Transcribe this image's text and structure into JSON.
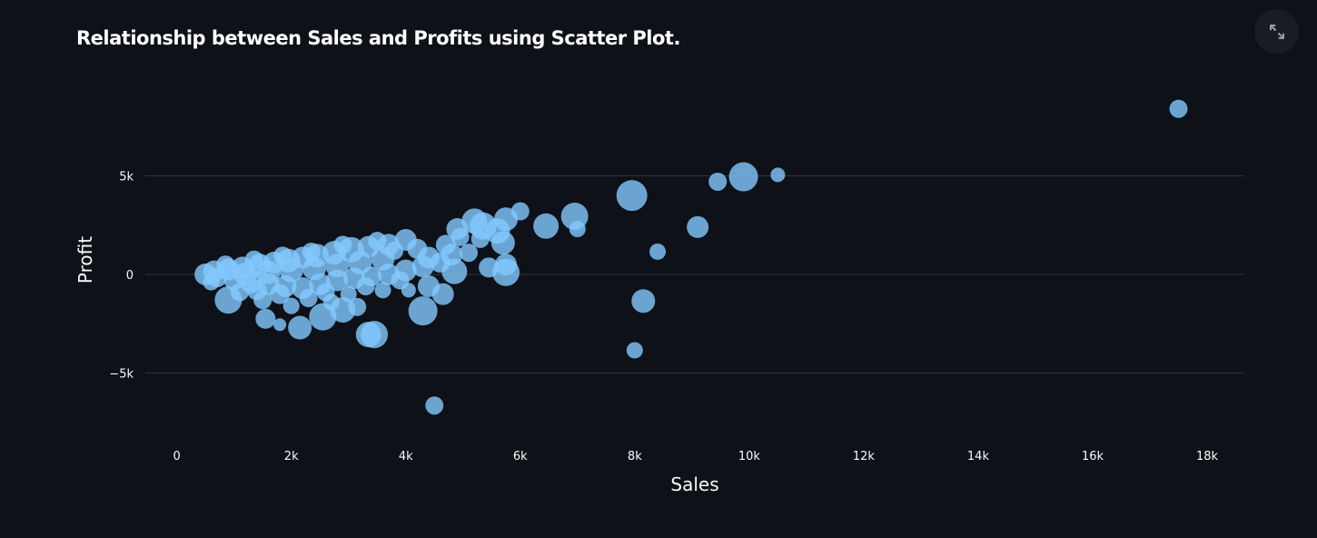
{
  "title": "Relationship between Sales and Profits using Scatter Plot.",
  "toolbar": {
    "fullscreen_icon": "expand-arrows-icon"
  },
  "colors": {
    "background": "#0e1117",
    "point": "#83c9ff",
    "grid": "#31333f",
    "text": "#fafafa"
  },
  "chart_data": {
    "type": "scatter",
    "title": "Relationship between Sales and Profits using Scatter Plot.",
    "xlabel": "Sales",
    "ylabel": "Profit",
    "xlim": [
      -550,
      18650
    ],
    "ylim": [
      -8300,
      10000
    ],
    "x_ticks": [
      0,
      2000,
      4000,
      6000,
      8000,
      10000,
      12000,
      14000,
      16000,
      18000
    ],
    "x_tick_labels": [
      "0",
      "2k",
      "4k",
      "6k",
      "8k",
      "10k",
      "12k",
      "14k",
      "16k",
      "18k"
    ],
    "y_ticks": [
      -5000,
      0,
      5000
    ],
    "y_tick_labels": [
      "−5k",
      "0",
      "5k"
    ],
    "grid": "horizontal",
    "legend": "none",
    "note_size": "marker size varies per point",
    "points": [
      {
        "x": 17500,
        "y": 8400,
        "size": 10
      },
      {
        "x": 9900,
        "y": 4950,
        "size": 16
      },
      {
        "x": 10500,
        "y": 5050,
        "size": 8
      },
      {
        "x": 9450,
        "y": 4700,
        "size": 10
      },
      {
        "x": 7950,
        "y": 4000,
        "size": 17
      },
      {
        "x": 6000,
        "y": 3200,
        "size": 10
      },
      {
        "x": 6950,
        "y": 2950,
        "size": 15
      },
      {
        "x": 6450,
        "y": 2450,
        "size": 14
      },
      {
        "x": 7000,
        "y": 2300,
        "size": 9
      },
      {
        "x": 9100,
        "y": 2400,
        "size": 12
      },
      {
        "x": 8400,
        "y": 1150,
        "size": 9
      },
      {
        "x": 8150,
        "y": -1350,
        "size": 13
      },
      {
        "x": 8000,
        "y": -3850,
        "size": 9
      },
      {
        "x": 4500,
        "y": -6650,
        "size": 10
      },
      {
        "x": 4300,
        "y": -1850,
        "size": 16
      },
      {
        "x": 3450,
        "y": -3050,
        "size": 15
      },
      {
        "x": 3350,
        "y": -3050,
        "size": 14
      },
      {
        "x": 2150,
        "y": -2700,
        "size": 13
      },
      {
        "x": 1800,
        "y": -2550,
        "size": 7
      },
      {
        "x": 2550,
        "y": -2150,
        "size": 15
      },
      {
        "x": 1550,
        "y": -2250,
        "size": 11
      },
      {
        "x": 900,
        "y": -1300,
        "size": 15
      },
      {
        "x": 2900,
        "y": -1800,
        "size": 14
      },
      {
        "x": 3150,
        "y": -1650,
        "size": 10
      },
      {
        "x": 4650,
        "y": -1000,
        "size": 12
      },
      {
        "x": 4050,
        "y": -800,
        "size": 8
      },
      {
        "x": 5750,
        "y": 100,
        "size": 15
      },
      {
        "x": 5750,
        "y": 500,
        "size": 12
      },
      {
        "x": 5450,
        "y": 350,
        "size": 11
      },
      {
        "x": 5700,
        "y": 1600,
        "size": 13
      },
      {
        "x": 5750,
        "y": 2800,
        "size": 13
      },
      {
        "x": 5350,
        "y": 2450,
        "size": 15
      },
      {
        "x": 5200,
        "y": 2700,
        "size": 14
      },
      {
        "x": 5600,
        "y": 2200,
        "size": 14
      },
      {
        "x": 4900,
        "y": 2300,
        "size": 12
      },
      {
        "x": 4950,
        "y": 1900,
        "size": 10
      },
      {
        "x": 4800,
        "y": 1000,
        "size": 12
      },
      {
        "x": 4850,
        "y": 150,
        "size": 14
      },
      {
        "x": 4400,
        "y": 850,
        "size": 12
      },
      {
        "x": 4400,
        "y": -600,
        "size": 12
      },
      {
        "x": 4000,
        "y": 1750,
        "size": 12
      },
      {
        "x": 3700,
        "y": 1500,
        "size": 12
      },
      {
        "x": 3350,
        "y": 1400,
        "size": 12
      },
      {
        "x": 3050,
        "y": 1250,
        "size": 14
      },
      {
        "x": 2750,
        "y": 1100,
        "size": 13
      },
      {
        "x": 2450,
        "y": 950,
        "size": 13
      },
      {
        "x": 2200,
        "y": 850,
        "size": 12
      },
      {
        "x": 1950,
        "y": 700,
        "size": 13
      },
      {
        "x": 1700,
        "y": 600,
        "size": 12
      },
      {
        "x": 1450,
        "y": 500,
        "size": 12
      },
      {
        "x": 1150,
        "y": 350,
        "size": 12
      },
      {
        "x": 900,
        "y": 250,
        "size": 12
      },
      {
        "x": 650,
        "y": 150,
        "size": 12
      },
      {
        "x": 500,
        "y": 0,
        "size": 12
      },
      {
        "x": 700,
        "y": -150,
        "size": 11
      },
      {
        "x": 1000,
        "y": -300,
        "size": 11
      },
      {
        "x": 1300,
        "y": -400,
        "size": 12
      },
      {
        "x": 1600,
        "y": -500,
        "size": 12
      },
      {
        "x": 1900,
        "y": -600,
        "size": 12
      },
      {
        "x": 2200,
        "y": -700,
        "size": 12
      },
      {
        "x": 2500,
        "y": -500,
        "size": 12
      },
      {
        "x": 2800,
        "y": -300,
        "size": 12
      },
      {
        "x": 3100,
        "y": -200,
        "size": 12
      },
      {
        "x": 3400,
        "y": -100,
        "size": 11
      },
      {
        "x": 3700,
        "y": 0,
        "size": 12
      },
      {
        "x": 4000,
        "y": 200,
        "size": 12
      },
      {
        "x": 4300,
        "y": 400,
        "size": 12
      },
      {
        "x": 4600,
        "y": 600,
        "size": 11
      },
      {
        "x": 1200,
        "y": 0,
        "size": 13
      },
      {
        "x": 1600,
        "y": 100,
        "size": 13
      },
      {
        "x": 2000,
        "y": 200,
        "size": 13
      },
      {
        "x": 2400,
        "y": 300,
        "size": 13
      },
      {
        "x": 2800,
        "y": 450,
        "size": 13
      },
      {
        "x": 3200,
        "y": 600,
        "size": 13
      },
      {
        "x": 3600,
        "y": 800,
        "size": 13
      },
      {
        "x": 1400,
        "y": -800,
        "size": 11
      },
      {
        "x": 1800,
        "y": -1000,
        "size": 11
      },
      {
        "x": 2300,
        "y": -1200,
        "size": 10
      },
      {
        "x": 1100,
        "y": -900,
        "size": 10
      },
      {
        "x": 2600,
        "y": -900,
        "size": 10
      },
      {
        "x": 3300,
        "y": -600,
        "size": 10
      },
      {
        "x": 3900,
        "y": -300,
        "size": 10
      },
      {
        "x": 3500,
        "y": 1700,
        "size": 10
      },
      {
        "x": 4200,
        "y": 1300,
        "size": 11
      },
      {
        "x": 4700,
        "y": 1500,
        "size": 11
      },
      {
        "x": 5100,
        "y": 1100,
        "size": 10
      },
      {
        "x": 5300,
        "y": 1800,
        "size": 10
      },
      {
        "x": 850,
        "y": 500,
        "size": 10
      },
      {
        "x": 1350,
        "y": 750,
        "size": 10
      },
      {
        "x": 1850,
        "y": 950,
        "size": 10
      },
      {
        "x": 2350,
        "y": 1150,
        "size": 10
      },
      {
        "x": 2900,
        "y": 1500,
        "size": 10
      },
      {
        "x": 3800,
        "y": 1200,
        "size": 10
      },
      {
        "x": 600,
        "y": -400,
        "size": 9
      },
      {
        "x": 1500,
        "y": -1300,
        "size": 10
      },
      {
        "x": 2000,
        "y": -1600,
        "size": 9
      },
      {
        "x": 2700,
        "y": -1400,
        "size": 9
      },
      {
        "x": 3000,
        "y": -1000,
        "size": 9
      },
      {
        "x": 3600,
        "y": -800,
        "size": 9
      }
    ]
  }
}
